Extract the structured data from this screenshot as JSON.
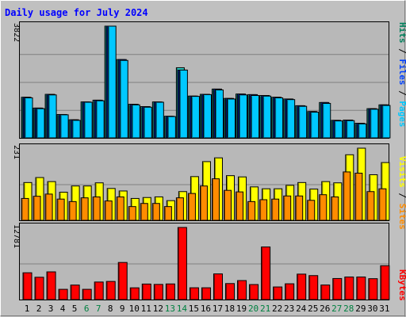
{
  "title": "Daily usage for July 2024",
  "colors": {
    "background": "#c0c0c0",
    "plot": "#b8b8b8",
    "title": "#0000ff",
    "hits": "#00805c",
    "hits_fill": "#2ad0c8",
    "files": "#0040ff",
    "pages": "#00c8ff",
    "visits": "#ffff00",
    "sites": "#ff8c00",
    "kbytes": "#ff0000",
    "weekend": "#008040",
    "day_label": "#000000"
  },
  "chart_data": [
    {
      "type": "bar",
      "categories": [
        "1",
        "2",
        "3",
        "4",
        "5",
        "6",
        "7",
        "8",
        "9",
        "10",
        "11",
        "12",
        "13",
        "14",
        "15",
        "16",
        "17",
        "18",
        "19",
        "20",
        "21",
        "22",
        "23",
        "24",
        "25",
        "26",
        "27",
        "28",
        "29",
        "30",
        "31"
      ],
      "weekend_days": [
        "6",
        "7",
        "13",
        "14",
        "20",
        "21",
        "27",
        "28"
      ],
      "ymax_label": "3822",
      "ylim": [
        0,
        3822
      ],
      "legend": [
        "Pages",
        "Files",
        "Hits"
      ],
      "series": [
        {
          "name": "Hits",
          "values": [
            1390,
            1020,
            1490,
            800,
            620,
            1230,
            1290,
            3822,
            2680,
            1150,
            1070,
            1230,
            740,
            2400,
            1430,
            1490,
            1670,
            1350,
            1500,
            1480,
            1450,
            1390,
            1330,
            1100,
            900,
            1210,
            600,
            610,
            500,
            1000,
            1130
          ]
        },
        {
          "name": "Files",
          "values": [
            1390,
            1020,
            1490,
            800,
            620,
            1230,
            1290,
            3822,
            2680,
            1150,
            1070,
            1230,
            740,
            2320,
            1430,
            1490,
            1670,
            1350,
            1500,
            1480,
            1450,
            1390,
            1330,
            1100,
            900,
            1210,
            600,
            610,
            500,
            1000,
            1130
          ]
        },
        {
          "name": "Pages",
          "values": [
            1370,
            1000,
            1470,
            790,
            600,
            1220,
            1270,
            3822,
            2650,
            1130,
            1050,
            1220,
            730,
            2320,
            1420,
            1480,
            1640,
            1330,
            1470,
            1450,
            1430,
            1370,
            1310,
            1080,
            880,
            1180,
            580,
            590,
            480,
            980,
            1110
          ]
        }
      ]
    },
    {
      "type": "bar",
      "categories": [
        "1",
        "2",
        "3",
        "4",
        "5",
        "6",
        "7",
        "8",
        "9",
        "10",
        "11",
        "12",
        "13",
        "14",
        "15",
        "16",
        "17",
        "18",
        "19",
        "20",
        "21",
        "22",
        "23",
        "24",
        "25",
        "26",
        "27",
        "28",
        "29",
        "30",
        "31"
      ],
      "ymax_label": "231",
      "ylim": [
        0,
        231
      ],
      "legend": [
        "Sites",
        "Visits"
      ],
      "series": [
        {
          "name": "Visits",
          "values": [
            121,
            137,
            124,
            90,
            110,
            110,
            120,
            102,
            94,
            70,
            73,
            75,
            63,
            92,
            140,
            188,
            200,
            143,
            139,
            107,
            101,
            101,
            112,
            121,
            100,
            124,
            120,
            210,
            231,
            146,
            185
          ]
        },
        {
          "name": "Sites",
          "values": [
            70,
            77,
            84,
            68,
            60,
            72,
            75,
            62,
            75,
            44,
            54,
            54,
            44,
            72,
            86,
            110,
            133,
            96,
            91,
            60,
            66,
            68,
            78,
            78,
            64,
            82,
            75,
            155,
            151,
            92,
            101
          ]
        }
      ]
    },
    {
      "type": "bar",
      "categories": [
        "1",
        "2",
        "3",
        "4",
        "5",
        "6",
        "7",
        "8",
        "9",
        "10",
        "11",
        "12",
        "13",
        "14",
        "15",
        "16",
        "17",
        "18",
        "19",
        "20",
        "21",
        "22",
        "23",
        "24",
        "25",
        "26",
        "27",
        "28",
        "29",
        "30",
        "31"
      ],
      "ymax_label": "12781",
      "ylim": [
        0,
        12781
      ],
      "legend": [
        "KBytes"
      ],
      "series": [
        {
          "name": "KBytes",
          "values": [
            4750,
            3955,
            4911,
            1815,
            2570,
            1815,
            3110,
            3213,
            6577,
            2080,
            2753,
            2687,
            2770,
            12781,
            2090,
            2090,
            4549,
            2838,
            3368,
            2664,
            9319,
            2236,
            2797,
            4510,
            4248,
            2580,
            3730,
            4000,
            4000,
            3700,
            6000
          ]
        }
      ]
    }
  ]
}
